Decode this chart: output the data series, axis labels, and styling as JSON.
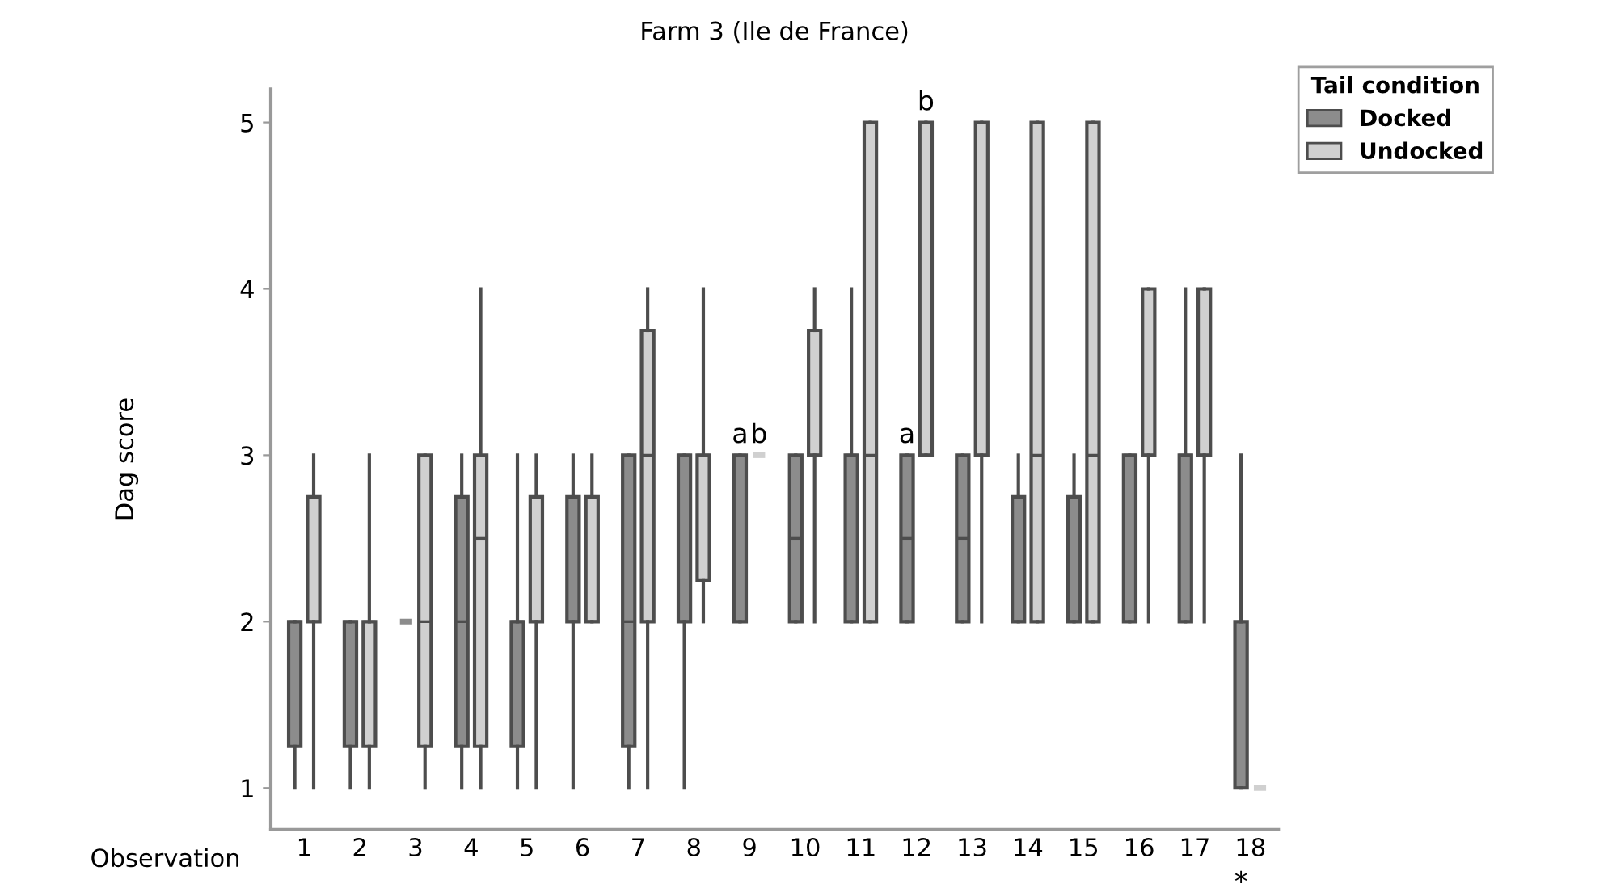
{
  "chart_data": {
    "type": "box",
    "title": "Farm 3 (Ile de France)",
    "xlabel": "Observation",
    "ylabel": "Dag score",
    "legend_title": "Tail condition",
    "legend": "top right",
    "grid": false,
    "categories": [
      "1",
      "2",
      "3",
      "4",
      "5",
      "6",
      "7",
      "8",
      "9",
      "10",
      "11",
      "12",
      "13",
      "14",
      "15",
      "16",
      "17",
      "18"
    ],
    "ylim": [
      0.75,
      5.2
    ],
    "yticks": [
      1,
      2,
      3,
      4,
      5
    ],
    "series": [
      {
        "name": "Docked",
        "color": "#8c8c8c",
        "boxes": [
          {
            "low": 1,
            "q1": 1.25,
            "median": 2,
            "q3": 2,
            "high": 2
          },
          {
            "low": 1,
            "q1": 1.25,
            "median": 2,
            "q3": 2,
            "high": 2
          },
          {
            "low": 2,
            "q1": 2,
            "median": 2,
            "q3": 2,
            "high": 2
          },
          {
            "low": 1,
            "q1": 1.25,
            "median": 2,
            "q3": 2.75,
            "high": 3
          },
          {
            "low": 1,
            "q1": 1.25,
            "median": 2,
            "q3": 2,
            "high": 3
          },
          {
            "low": 1,
            "q1": 2,
            "median": 2,
            "q3": 2.75,
            "high": 3
          },
          {
            "low": 1,
            "q1": 1.25,
            "median": 2,
            "q3": 3,
            "high": 3
          },
          {
            "low": 1,
            "q1": 2,
            "median": 3,
            "q3": 3,
            "high": 3
          },
          {
            "low": 2,
            "q1": 2,
            "median": 3,
            "q3": 3,
            "high": 3
          },
          {
            "low": 2,
            "q1": 2,
            "median": 2.5,
            "q3": 3,
            "high": 3
          },
          {
            "low": 2,
            "q1": 2,
            "median": 3,
            "q3": 3,
            "high": 4
          },
          {
            "low": 2,
            "q1": 2,
            "median": 2.5,
            "q3": 3,
            "high": 3
          },
          {
            "low": 2,
            "q1": 2,
            "median": 2.5,
            "q3": 3,
            "high": 3
          },
          {
            "low": 2,
            "q1": 2,
            "median": 2,
            "q3": 2.75,
            "high": 3
          },
          {
            "low": 2,
            "q1": 2,
            "median": 2,
            "q3": 2.75,
            "high": 3
          },
          {
            "low": 2,
            "q1": 2,
            "median": 3,
            "q3": 3,
            "high": 3
          },
          {
            "low": 2,
            "q1": 2,
            "median": 3,
            "q3": 3,
            "high": 4
          },
          {
            "low": 1,
            "q1": 1,
            "median": 1,
            "q3": 2,
            "high": 3
          }
        ]
      },
      {
        "name": "Undocked",
        "color": "#d0d0d0",
        "boxes": [
          {
            "low": 1,
            "q1": 2,
            "median": 2,
            "q3": 2.75,
            "high": 3
          },
          {
            "low": 1,
            "q1": 1.25,
            "median": 2,
            "q3": 2,
            "high": 3
          },
          {
            "low": 1,
            "q1": 1.25,
            "median": 2,
            "q3": 3,
            "high": 3
          },
          {
            "low": 1,
            "q1": 1.25,
            "median": 2.5,
            "q3": 3,
            "high": 4
          },
          {
            "low": 1,
            "q1": 2,
            "median": 2,
            "q3": 2.75,
            "high": 3
          },
          {
            "low": 2,
            "q1": 2,
            "median": 2,
            "q3": 2.75,
            "high": 3
          },
          {
            "low": 1,
            "q1": 2,
            "median": 3,
            "q3": 3.75,
            "high": 4
          },
          {
            "low": 2,
            "q1": 2.25,
            "median": 3,
            "q3": 3,
            "high": 4
          },
          {
            "low": 3,
            "q1": 3,
            "median": 3,
            "q3": 3,
            "high": 3
          },
          {
            "low": 2,
            "q1": 3,
            "median": 3,
            "q3": 3.75,
            "high": 4
          },
          {
            "low": 2,
            "q1": 2,
            "median": 3,
            "q3": 5,
            "high": 5
          },
          {
            "low": 3,
            "q1": 3,
            "median": 3,
            "q3": 5,
            "high": 5
          },
          {
            "low": 2,
            "q1": 3,
            "median": 3,
            "q3": 5,
            "high": 5
          },
          {
            "low": 2,
            "q1": 2,
            "median": 3,
            "q3": 5,
            "high": 5
          },
          {
            "low": 2,
            "q1": 2,
            "median": 3,
            "q3": 5,
            "high": 5
          },
          {
            "low": 2,
            "q1": 3,
            "median": 3,
            "q3": 4,
            "high": 4
          },
          {
            "low": 2,
            "q1": 3,
            "median": 3,
            "q3": 4,
            "high": 4
          },
          {
            "low": 1,
            "q1": 1,
            "median": 1,
            "q3": 1,
            "high": 1
          }
        ]
      }
    ],
    "annotations": [
      {
        "text": "a",
        "x": "9",
        "y": 3
      },
      {
        "text": "b",
        "x": "9",
        "y": 3
      },
      {
        "text": "a",
        "x": "12",
        "y": 3
      },
      {
        "text": "b",
        "x": "12",
        "y": 5
      },
      "*"
    ]
  }
}
